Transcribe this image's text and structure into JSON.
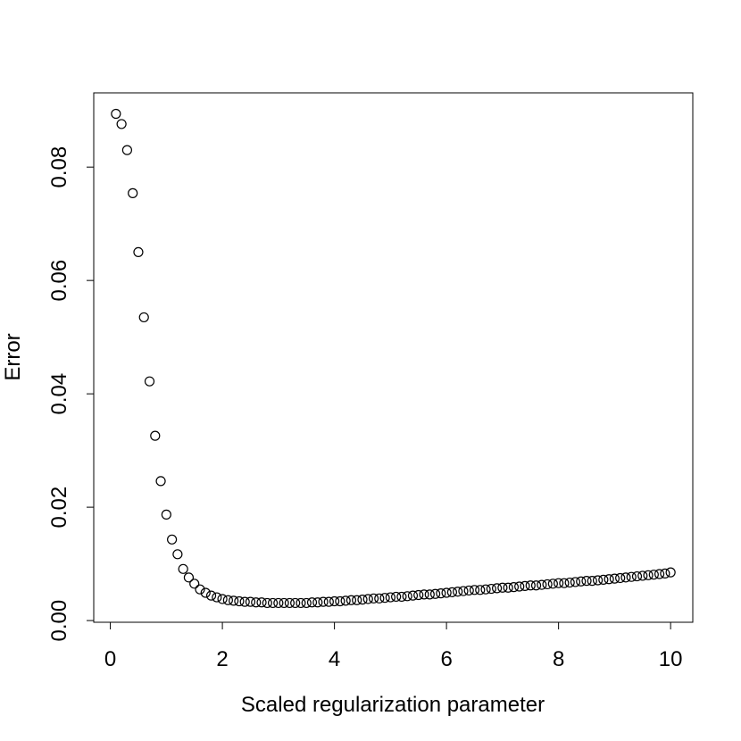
{
  "chart_data": {
    "type": "scatter",
    "x_label": "Scaled regularization parameter",
    "y_label": "Error",
    "marker": "open-circle",
    "color": "#000000",
    "xlim": [
      -0.296,
      10.396
    ],
    "ylim": [
      -0.0003,
      0.0931
    ],
    "xticks": [
      0,
      2,
      4,
      6,
      8,
      10
    ],
    "yticks": [
      {
        "value": 0,
        "label": "0.00"
      },
      {
        "value": 0.02,
        "label": "0.02"
      },
      {
        "value": 0.04,
        "label": "0.04"
      },
      {
        "value": 0.06,
        "label": "0.06"
      },
      {
        "value": 0.08,
        "label": "0.08"
      }
    ],
    "x": [
      0.1,
      0.2,
      0.3,
      0.4,
      0.5,
      0.6,
      0.7,
      0.8,
      0.9,
      1.0,
      1.1,
      1.2,
      1.3,
      1.4,
      1.5,
      1.6,
      1.7,
      1.8,
      1.9,
      2.0,
      2.1,
      2.2,
      2.3,
      2.4,
      2.5,
      2.6,
      2.7,
      2.8,
      2.9,
      3.0,
      3.1,
      3.2,
      3.3,
      3.4,
      3.5,
      3.6,
      3.7,
      3.8,
      3.9,
      4.0,
      4.1,
      4.2,
      4.3,
      4.4,
      4.5,
      4.6,
      4.7,
      4.8,
      4.9,
      5.0,
      5.1,
      5.2,
      5.3,
      5.4,
      5.5,
      5.6,
      5.7,
      5.8,
      5.9,
      6.0,
      6.1,
      6.2,
      6.3,
      6.4,
      6.5,
      6.6,
      6.7,
      6.8,
      6.9,
      7.0,
      7.1,
      7.2,
      7.3,
      7.4,
      7.5,
      7.6,
      7.7,
      7.8,
      7.9,
      8.0,
      8.1,
      8.2,
      8.3,
      8.4,
      8.5,
      8.6,
      8.7,
      8.8,
      8.9,
      9.0,
      9.1,
      9.2,
      9.3,
      9.4,
      9.5,
      9.6,
      9.7,
      9.8,
      9.9,
      10.0
    ],
    "values": [
      0.0894,
      0.0876,
      0.083,
      0.0754,
      0.065,
      0.0535,
      0.0422,
      0.0326,
      0.0246,
      0.0187,
      0.0143,
      0.0117,
      0.0091,
      0.0076,
      0.0065,
      0.0055,
      0.0049,
      0.0044,
      0.0041,
      0.0038,
      0.0036,
      0.0035,
      0.0034,
      0.0033,
      0.0033,
      0.0032,
      0.0032,
      0.0031,
      0.0031,
      0.0031,
      0.0031,
      0.0031,
      0.0031,
      0.0031,
      0.0031,
      0.0032,
      0.0032,
      0.0033,
      0.0033,
      0.0034,
      0.0034,
      0.0035,
      0.0036,
      0.0036,
      0.0037,
      0.0038,
      0.0039,
      0.0039,
      0.004,
      0.0041,
      0.0042,
      0.0042,
      0.0043,
      0.0044,
      0.0045,
      0.0046,
      0.0046,
      0.0047,
      0.0048,
      0.0049,
      0.005,
      0.0051,
      0.0052,
      0.0053,
      0.0054,
      0.0054,
      0.0055,
      0.0056,
      0.0057,
      0.0058,
      0.0058,
      0.0059,
      0.006,
      0.0061,
      0.0062,
      0.0062,
      0.0063,
      0.0064,
      0.0065,
      0.0066,
      0.0066,
      0.0067,
      0.0068,
      0.0069,
      0.007,
      0.007,
      0.0071,
      0.0072,
      0.0073,
      0.0074,
      0.0075,
      0.0076,
      0.0077,
      0.0078,
      0.0079,
      0.008,
      0.0081,
      0.0082,
      0.0083,
      0.0085
    ]
  }
}
